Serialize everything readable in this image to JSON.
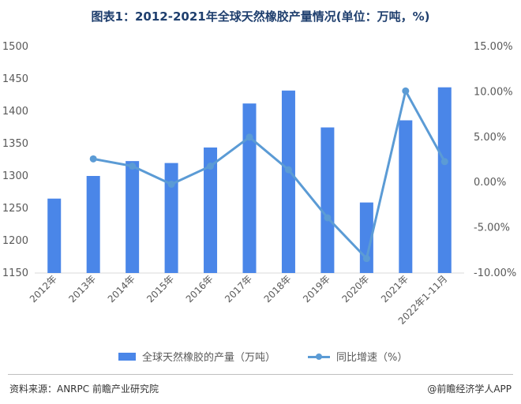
{
  "chart_data": {
    "type": "bar",
    "title": "图表1：2012-2021年全球天然橡胶产量情况(单位：万吨，%)",
    "categories": [
      "2012年",
      "2013年",
      "2014年",
      "2015年",
      "2016年",
      "2017年",
      "2018年",
      "2019年",
      "2020年",
      "2021年",
      "2022年1-11月"
    ],
    "series": [
      {
        "name": "全球天然橡胶的产量（万吨）",
        "type": "bar",
        "axis": "left",
        "values": [
          1265,
          1300,
          1323,
          1320,
          1344,
          1412,
          1432,
          1375,
          1259,
          1386,
          1437
        ]
      },
      {
        "name": "同比增速（%）",
        "type": "line",
        "axis": "right",
        "values": [
          null,
          2.6,
          1.8,
          -0.2,
          1.8,
          5.0,
          1.4,
          -3.9,
          -8.4,
          10.1,
          2.3
        ]
      }
    ],
    "y_left": {
      "min": 1150,
      "max": 1500,
      "ticks": [
        "1150",
        "1200",
        "1250",
        "1300",
        "1350",
        "1400",
        "1450",
        "1500"
      ]
    },
    "y_right": {
      "min": -10,
      "max": 15,
      "ticks": [
        "-10.00%",
        "-5.00%",
        "0.00%",
        "5.00%",
        "10.00%",
        "15.00%"
      ]
    },
    "grid": false,
    "legend_position": "bottom",
    "colors": {
      "bar": "#4a86e8",
      "line": "#5b9bd5",
      "title": "#1f3f6e"
    }
  },
  "footer": {
    "source": "资料来源：ANRPC 前瞻产业研究院",
    "brand": "@前瞻经济学人APP"
  }
}
